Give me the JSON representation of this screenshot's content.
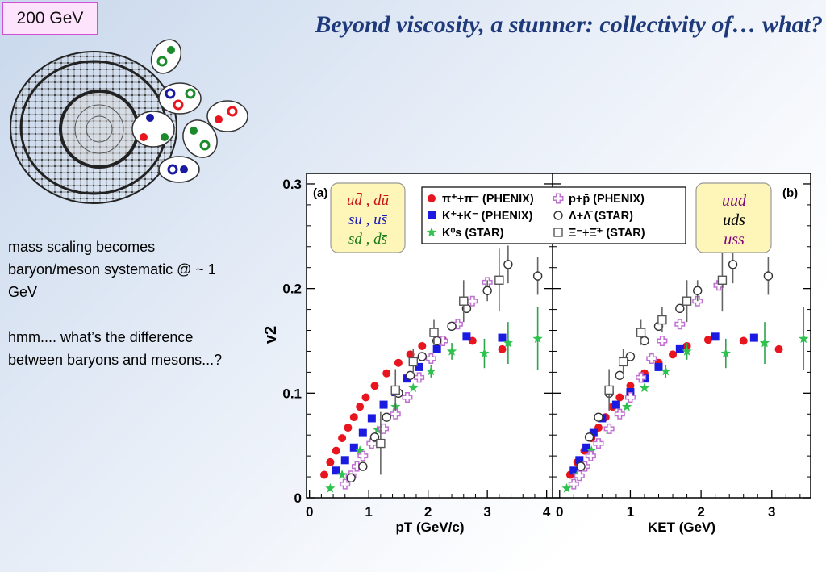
{
  "badge": "200 GeV",
  "title": "Beyond viscosity, a stunner: collectivity of… what?",
  "notes": [
    "mass scaling becomes baryon/meson systematic @ ~ 1 GeV",
    "hmm.... what’s the difference between baryons and mesons...?"
  ],
  "quark_box_mesons": [
    "ud̄ , dū",
    "sū , us̄",
    "sd̄ , ds̄"
  ],
  "quark_box_baryons": [
    "uud",
    "uds",
    "uss"
  ],
  "colors": {
    "pion": "#e8141e",
    "kaon": "#1a1ae0",
    "ks": "#2fc24e",
    "proton": "#c070d0",
    "lambda": "#333333",
    "xi": "#555555"
  },
  "chart_data": [
    {
      "type": "scatter",
      "panel_label": "(a)",
      "xlabel": "pT (GeV/c)",
      "ylabel": "v2",
      "xlim": [
        -0.05,
        4.1
      ],
      "ylim": [
        0,
        0.31
      ],
      "xticks": [
        "0",
        "1",
        "2",
        "3",
        "4"
      ],
      "yticks": [
        "0",
        "0.1",
        "0.2",
        "0.3"
      ],
      "legend": [
        "π⁺+π⁻ (PHENIX)",
        "K⁺+K⁻ (PHENIX)",
        "K⁰s (STAR)",
        "p+p̄ (PHENIX)",
        "Λ+Λ̄ (STAR)",
        "Ξ⁻+Ξ̄⁺ (STAR)"
      ],
      "series": [
        {
          "name": "π⁺+π⁻ (PHENIX)",
          "marker": "circle-filled",
          "color": "#e8141e",
          "x": [
            0.25,
            0.35,
            0.45,
            0.55,
            0.65,
            0.75,
            0.85,
            0.95,
            1.1,
            1.3,
            1.5,
            1.7,
            1.9,
            2.25,
            2.75,
            3.25
          ],
          "y": [
            0.022,
            0.034,
            0.045,
            0.057,
            0.067,
            0.077,
            0.087,
            0.096,
            0.107,
            0.119,
            0.129,
            0.137,
            0.145,
            0.151,
            0.15,
            0.142
          ],
          "yerr": [
            0,
            0,
            0,
            0,
            0,
            0,
            0,
            0,
            0,
            0,
            0,
            0,
            0,
            0,
            0,
            0
          ]
        },
        {
          "name": "K⁺+K⁻ (PHENIX)",
          "marker": "square-filled",
          "color": "#1a1ae0",
          "x": [
            0.45,
            0.6,
            0.75,
            0.9,
            1.05,
            1.25,
            1.45,
            1.65,
            1.85,
            2.15,
            2.65,
            3.25
          ],
          "y": [
            0.026,
            0.036,
            0.048,
            0.062,
            0.076,
            0.089,
            0.101,
            0.114,
            0.125,
            0.142,
            0.154,
            0.153
          ],
          "yerr": [
            0,
            0,
            0,
            0,
            0,
            0,
            0,
            0,
            0,
            0,
            0,
            0
          ]
        },
        {
          "name": "K⁰s (STAR)",
          "marker": "star",
          "color": "#2fc24e",
          "x": [
            0.35,
            0.55,
            0.85,
            1.15,
            1.45,
            1.75,
            2.05,
            2.4,
            2.95,
            3.35,
            3.85
          ],
          "y": [
            0.009,
            0.022,
            0.045,
            0.065,
            0.087,
            0.105,
            0.121,
            0.14,
            0.138,
            0.148,
            0.152
          ],
          "yerr": [
            0,
            0,
            0,
            0,
            0,
            0,
            0.006,
            0.008,
            0.014,
            0.02,
            0.03
          ]
        },
        {
          "name": "p+p̄ (PHENIX)",
          "marker": "cross-open",
          "color": "#c070d0",
          "x": [
            0.6,
            0.7,
            0.8,
            0.9,
            1.05,
            1.25,
            1.45,
            1.65,
            1.85,
            2.05,
            2.25,
            2.5,
            2.75,
            3.0
          ],
          "y": [
            0.013,
            0.021,
            0.03,
            0.04,
            0.052,
            0.066,
            0.08,
            0.096,
            0.115,
            0.133,
            0.15,
            0.166,
            0.188,
            0.206
          ],
          "yerr": [
            0,
            0,
            0,
            0,
            0,
            0,
            0,
            0,
            0,
            0,
            0,
            0,
            0,
            0
          ]
        },
        {
          "name": "Λ+Λ̄ (STAR)",
          "marker": "circle-open",
          "color": "#333333",
          "x": [
            0.7,
            0.9,
            1.1,
            1.3,
            1.5,
            1.7,
            1.9,
            2.15,
            2.4,
            2.65,
            3.0,
            3.35,
            3.85
          ],
          "y": [
            0.019,
            0.03,
            0.058,
            0.077,
            0.1,
            0.117,
            0.135,
            0.15,
            0.164,
            0.181,
            0.198,
            0.223,
            0.212
          ],
          "yerr": [
            0,
            0,
            0,
            0,
            0,
            0,
            0,
            0,
            0,
            0,
            0.01,
            0.018,
            0.018
          ]
        },
        {
          "name": "Ξ⁻+Ξ̄⁺ (STAR)",
          "marker": "square-open",
          "color": "#555555",
          "x": [
            1.2,
            1.45,
            1.75,
            2.1,
            2.6,
            3.2
          ],
          "y": [
            0.052,
            0.103,
            0.13,
            0.158,
            0.188,
            0.208
          ],
          "yerr": [
            0.03,
            0.02,
            0.012,
            0.012,
            0.02,
            0.03
          ]
        }
      ]
    },
    {
      "type": "scatter",
      "panel_label": "(b)",
      "xlabel": "KET (GeV)",
      "ylabel": "v2",
      "xlim": [
        -0.1,
        3.55
      ],
      "ylim": [
        0,
        0.31
      ],
      "xticks": [
        "0",
        "1",
        "2",
        "3"
      ],
      "yticks": [
        "0",
        "0.1",
        "0.2",
        "0.3"
      ],
      "series": [
        {
          "name": "π⁺+π⁻ (PHENIX)",
          "marker": "circle-filled",
          "color": "#e8141e",
          "x": [
            0.15,
            0.25,
            0.35,
            0.45,
            0.55,
            0.65,
            0.75,
            0.85,
            1.0,
            1.2,
            1.4,
            1.6,
            1.8,
            2.1,
            2.6,
            3.1
          ],
          "y": [
            0.022,
            0.034,
            0.045,
            0.057,
            0.067,
            0.077,
            0.087,
            0.096,
            0.107,
            0.119,
            0.129,
            0.137,
            0.145,
            0.151,
            0.15,
            0.142
          ],
          "yerr": [
            0,
            0,
            0,
            0,
            0,
            0,
            0,
            0,
            0,
            0,
            0,
            0,
            0,
            0,
            0,
            0
          ]
        },
        {
          "name": "K⁺+K⁻ (PHENIX)",
          "marker": "square-filled",
          "color": "#1a1ae0",
          "x": [
            0.2,
            0.28,
            0.38,
            0.48,
            0.6,
            0.8,
            1.0,
            1.2,
            1.4,
            1.7,
            2.2,
            2.75
          ],
          "y": [
            0.026,
            0.036,
            0.048,
            0.062,
            0.076,
            0.089,
            0.101,
            0.114,
            0.125,
            0.142,
            0.154,
            0.153
          ],
          "yerr": [
            0,
            0,
            0,
            0,
            0,
            0,
            0,
            0,
            0,
            0,
            0,
            0
          ]
        },
        {
          "name": "K⁰s (STAR)",
          "marker": "star",
          "color": "#2fc24e",
          "x": [
            0.1,
            0.25,
            0.45,
            0.7,
            0.95,
            1.2,
            1.5,
            1.8,
            2.35,
            2.9,
            3.45
          ],
          "y": [
            0.009,
            0.022,
            0.045,
            0.065,
            0.087,
            0.105,
            0.121,
            0.14,
            0.138,
            0.148,
            0.152
          ],
          "yerr": [
            0,
            0,
            0,
            0,
            0,
            0,
            0.006,
            0.008,
            0.014,
            0.02,
            0.03
          ]
        },
        {
          "name": "p+p̄ (PHENIX)",
          "marker": "cross-open",
          "color": "#c070d0",
          "x": [
            0.2,
            0.28,
            0.36,
            0.44,
            0.55,
            0.7,
            0.85,
            1.0,
            1.15,
            1.3,
            1.45,
            1.7,
            1.95,
            2.25
          ],
          "y": [
            0.013,
            0.021,
            0.03,
            0.04,
            0.052,
            0.066,
            0.08,
            0.096,
            0.115,
            0.133,
            0.15,
            0.166,
            0.188,
            0.203
          ],
          "yerr": [
            0,
            0,
            0,
            0,
            0,
            0,
            0,
            0,
            0,
            0,
            0,
            0,
            0,
            0
          ]
        },
        {
          "name": "Λ+Λ̄ (STAR)",
          "marker": "circle-open",
          "color": "#333333",
          "x": [
            0.3,
            0.42,
            0.55,
            0.7,
            0.85,
            1.0,
            1.2,
            1.4,
            1.7,
            1.95,
            2.45,
            2.95
          ],
          "y": [
            0.03,
            0.058,
            0.077,
            0.1,
            0.117,
            0.135,
            0.15,
            0.164,
            0.181,
            0.198,
            0.223,
            0.212
          ],
          "yerr": [
            0,
            0,
            0,
            0,
            0,
            0,
            0,
            0,
            0,
            0.01,
            0.018,
            0.018
          ]
        },
        {
          "name": "Ξ⁻+Ξ̄⁺ (STAR)",
          "marker": "square-open",
          "color": "#555555",
          "x": [
            0.7,
            0.9,
            1.15,
            1.45,
            1.8,
            2.3
          ],
          "y": [
            0.103,
            0.13,
            0.158,
            0.17,
            0.188,
            0.208
          ],
          "yerr": [
            0.02,
            0.012,
            0.012,
            0.012,
            0.02,
            0.03
          ]
        }
      ]
    }
  ]
}
